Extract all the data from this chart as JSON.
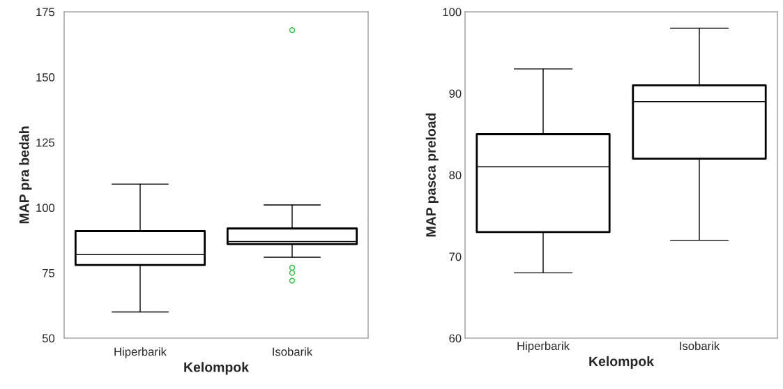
{
  "chart_data": [
    {
      "type": "box",
      "categories": [
        "Hiperbarik",
        "Isobarik"
      ],
      "xlabel": "Kelompok",
      "ylabel": "MAP pra bedah",
      "ylim": [
        50,
        175
      ],
      "yticks": [
        50,
        75,
        100,
        125,
        150,
        175
      ],
      "grid": false,
      "boxes": [
        {
          "low": 60,
          "q1": 78,
          "median": 82,
          "q3": 91,
          "high": 109
        },
        {
          "low": 81,
          "q1": 86,
          "median": 87,
          "q3": 92,
          "high": 101,
          "outliers": [
            168,
            77,
            75,
            72
          ]
        }
      ]
    },
    {
      "type": "box",
      "categories": [
        "Hiperbarik",
        "Isobarik"
      ],
      "xlabel": "Kelompok",
      "ylabel": "MAP pasca preload",
      "ylim": [
        60,
        100
      ],
      "yticks": [
        60,
        70,
        80,
        90,
        100
      ],
      "grid": false,
      "boxes": [
        {
          "low": 68,
          "q1": 73,
          "median": 81,
          "q3": 85,
          "high": 93
        },
        {
          "low": 72,
          "q1": 82,
          "median": 89,
          "q3": 91,
          "high": 98
        }
      ]
    }
  ]
}
